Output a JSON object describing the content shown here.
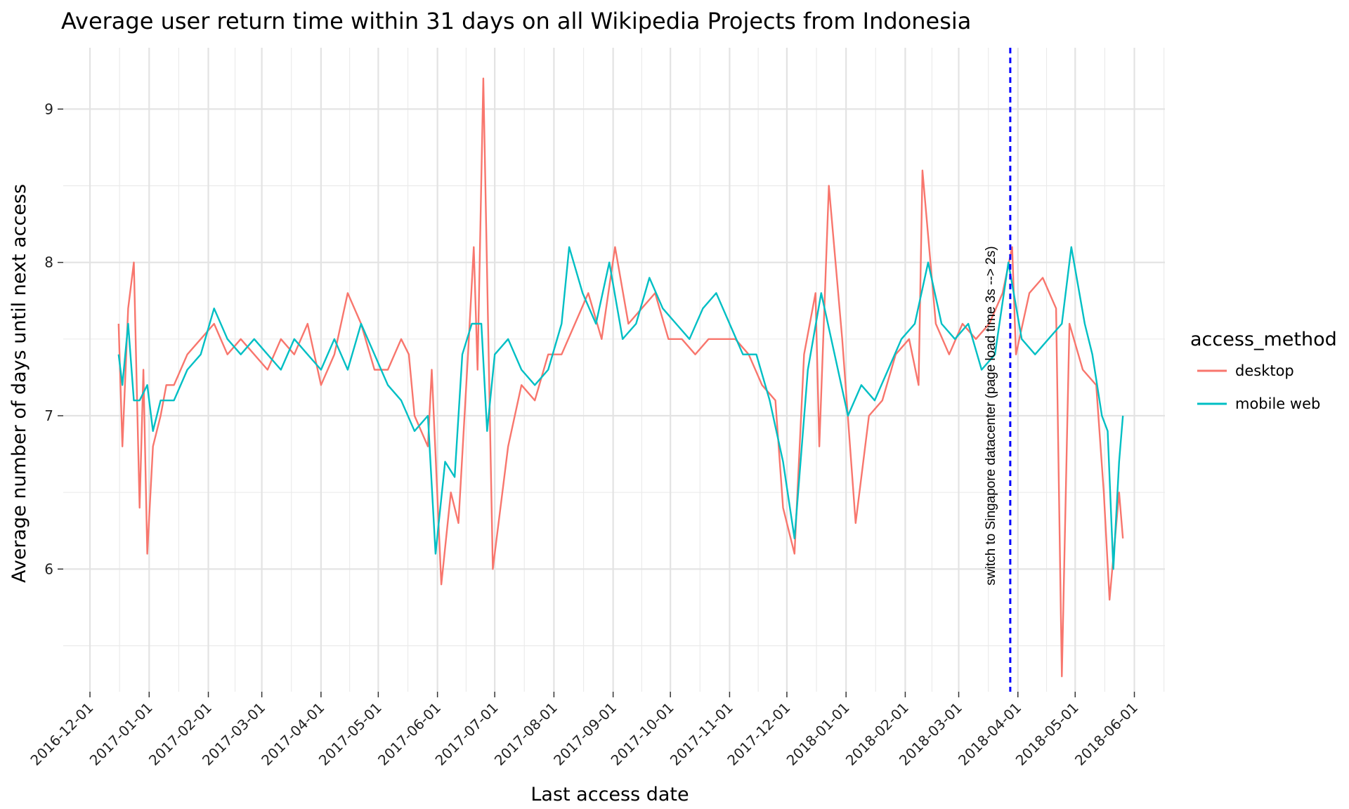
{
  "chart_data": {
    "type": "line",
    "title": "Average user return time within 31 days on all Wikipedia Projects from Indonesia",
    "xlabel": "Last access date",
    "ylabel": "Average number of days until next access",
    "x_ticks": [
      "2016-12-01",
      "2017-01-01",
      "2017-02-01",
      "2017-03-01",
      "2017-04-01",
      "2017-05-01",
      "2017-06-01",
      "2017-07-01",
      "2017-08-01",
      "2017-09-01",
      "2017-10-01",
      "2017-11-01",
      "2017-12-01",
      "2018-01-01",
      "2018-02-01",
      "2018-03-01",
      "2018-04-01",
      "2018-05-01",
      "2018-06-01"
    ],
    "y_ticks": [
      6,
      7,
      8,
      9
    ],
    "xlim": [
      "2016-11-17",
      "2018-06-17"
    ],
    "ylim": [
      5.2,
      9.4
    ],
    "legend": {
      "title": "access_method",
      "position": "right"
    },
    "annotation": {
      "text": "switch to Singapore datacenter (page load time 3s --> 2s)",
      "x": "2018-03-28",
      "color": "#0000ff",
      "linestyle": "dashed"
    },
    "series": [
      {
        "name": "desktop",
        "color": "#F8766D",
        "x": [
          "2016-12-16",
          "2016-12-18",
          "2016-12-21",
          "2016-12-24",
          "2016-12-27",
          "2016-12-29",
          "2016-12-31",
          "2017-01-03",
          "2017-01-07",
          "2017-01-10",
          "2017-01-14",
          "2017-01-21",
          "2017-01-28",
          "2017-02-04",
          "2017-02-11",
          "2017-02-18",
          "2017-02-25",
          "2017-03-04",
          "2017-03-11",
          "2017-03-18",
          "2017-03-25",
          "2017-04-01",
          "2017-04-08",
          "2017-04-15",
          "2017-04-22",
          "2017-04-29",
          "2017-05-06",
          "2017-05-13",
          "2017-05-17",
          "2017-05-20",
          "2017-05-27",
          "2017-05-29",
          "2017-06-03",
          "2017-06-08",
          "2017-06-12",
          "2017-06-17",
          "2017-06-20",
          "2017-06-22",
          "2017-06-25",
          "2017-06-30",
          "2017-07-08",
          "2017-07-15",
          "2017-07-22",
          "2017-07-29",
          "2017-08-05",
          "2017-08-12",
          "2017-08-19",
          "2017-08-26",
          "2017-09-02",
          "2017-09-09",
          "2017-09-16",
          "2017-09-23",
          "2017-09-30",
          "2017-10-07",
          "2017-10-14",
          "2017-10-21",
          "2017-10-28",
          "2017-11-04",
          "2017-11-11",
          "2017-11-18",
          "2017-11-25",
          "2017-11-29",
          "2017-12-05",
          "2017-12-10",
          "2017-12-16",
          "2017-12-18",
          "2017-12-23",
          "2017-12-30",
          "2018-01-06",
          "2018-01-13",
          "2018-01-20",
          "2018-01-27",
          "2018-02-03",
          "2018-02-08",
          "2018-02-10",
          "2018-02-17",
          "2018-02-24",
          "2018-03-03",
          "2018-03-10",
          "2018-03-17",
          "2018-03-24",
          "2018-03-29",
          "2018-03-31",
          "2018-04-07",
          "2018-04-14",
          "2018-04-21",
          "2018-04-24",
          "2018-04-28",
          "2018-05-05",
          "2018-05-12",
          "2018-05-16",
          "2018-05-19",
          "2018-05-24",
          "2018-05-26"
        ],
        "values": [
          7.6,
          6.8,
          7.7,
          8.0,
          6.4,
          7.3,
          6.1,
          6.8,
          7.0,
          7.2,
          7.2,
          7.4,
          7.5,
          7.6,
          7.4,
          7.5,
          7.4,
          7.3,
          7.5,
          7.4,
          7.6,
          7.2,
          7.4,
          7.8,
          7.6,
          7.3,
          7.3,
          7.5,
          7.4,
          7.0,
          6.8,
          7.3,
          5.9,
          6.5,
          6.3,
          7.4,
          8.1,
          7.3,
          9.2,
          6.0,
          6.8,
          7.2,
          7.1,
          7.4,
          7.4,
          7.6,
          7.8,
          7.5,
          8.1,
          7.6,
          7.7,
          7.8,
          7.5,
          7.5,
          7.4,
          7.5,
          7.5,
          7.5,
          7.4,
          7.2,
          7.1,
          6.4,
          6.1,
          7.4,
          7.8,
          6.8,
          8.5,
          7.5,
          6.3,
          7.0,
          7.1,
          7.4,
          7.5,
          7.2,
          8.6,
          7.6,
          7.4,
          7.6,
          7.5,
          7.6,
          7.8,
          8.1,
          7.4,
          7.8,
          7.9,
          7.7,
          5.3,
          7.6,
          7.3,
          7.2,
          6.5,
          5.8,
          6.5,
          6.2
        ]
      },
      {
        "name": "mobile web",
        "color": "#00BFC4",
        "x": [
          "2016-12-16",
          "2016-12-18",
          "2016-12-21",
          "2016-12-24",
          "2016-12-27",
          "2016-12-31",
          "2017-01-03",
          "2017-01-07",
          "2017-01-14",
          "2017-01-21",
          "2017-01-28",
          "2017-02-04",
          "2017-02-11",
          "2017-02-18",
          "2017-02-25",
          "2017-03-04",
          "2017-03-11",
          "2017-03-18",
          "2017-03-25",
          "2017-04-01",
          "2017-04-08",
          "2017-04-15",
          "2017-04-22",
          "2017-04-29",
          "2017-05-06",
          "2017-05-13",
          "2017-05-20",
          "2017-05-27",
          "2017-05-31",
          "2017-06-05",
          "2017-06-10",
          "2017-06-14",
          "2017-06-19",
          "2017-06-24",
          "2017-06-27",
          "2017-07-01",
          "2017-07-08",
          "2017-07-15",
          "2017-07-22",
          "2017-07-29",
          "2017-08-05",
          "2017-08-09",
          "2017-08-16",
          "2017-08-23",
          "2017-08-30",
          "2017-09-06",
          "2017-09-13",
          "2017-09-20",
          "2017-09-27",
          "2017-10-04",
          "2017-10-11",
          "2017-10-18",
          "2017-10-25",
          "2017-11-01",
          "2017-11-08",
          "2017-11-15",
          "2017-11-22",
          "2017-11-29",
          "2017-12-05",
          "2017-12-12",
          "2017-12-19",
          "2017-12-26",
          "2018-01-02",
          "2018-01-09",
          "2018-01-16",
          "2018-01-23",
          "2018-01-30",
          "2018-02-06",
          "2018-02-13",
          "2018-02-20",
          "2018-02-27",
          "2018-03-06",
          "2018-03-13",
          "2018-03-20",
          "2018-03-27",
          "2018-04-03",
          "2018-04-10",
          "2018-04-17",
          "2018-04-24",
          "2018-04-29",
          "2018-05-06",
          "2018-05-10",
          "2018-05-15",
          "2018-05-18",
          "2018-05-21",
          "2018-05-24",
          "2018-05-26"
        ],
        "values": [
          7.4,
          7.2,
          7.6,
          7.1,
          7.1,
          7.2,
          6.9,
          7.1,
          7.1,
          7.3,
          7.4,
          7.7,
          7.5,
          7.4,
          7.5,
          7.4,
          7.3,
          7.5,
          7.4,
          7.3,
          7.5,
          7.3,
          7.6,
          7.4,
          7.2,
          7.1,
          6.9,
          7.0,
          6.1,
          6.7,
          6.6,
          7.4,
          7.6,
          7.6,
          6.9,
          7.4,
          7.5,
          7.3,
          7.2,
          7.3,
          7.6,
          8.1,
          7.8,
          7.6,
          8.0,
          7.5,
          7.6,
          7.9,
          7.7,
          7.6,
          7.5,
          7.7,
          7.8,
          7.6,
          7.4,
          7.4,
          7.1,
          6.7,
          6.2,
          7.3,
          7.8,
          7.4,
          7.0,
          7.2,
          7.1,
          7.3,
          7.5,
          7.6,
          8.0,
          7.6,
          7.5,
          7.6,
          7.3,
          7.4,
          8.0,
          7.5,
          7.4,
          7.5,
          7.6,
          8.1,
          7.6,
          7.4,
          7.0,
          6.9,
          6.0,
          6.7,
          7.0
        ]
      }
    ]
  }
}
